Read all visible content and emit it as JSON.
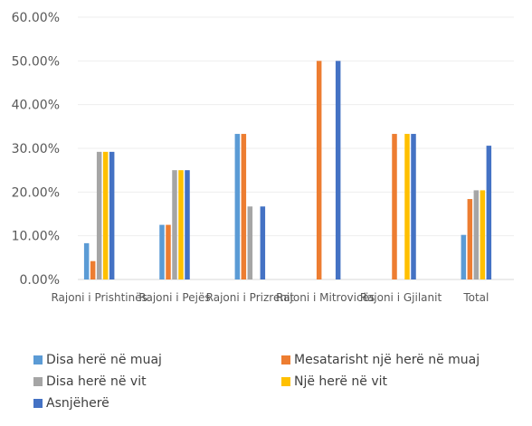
{
  "chart_data": {
    "type": "bar",
    "categories": [
      "Rajoni i Prishtinës",
      "Rajoni i Pejës",
      "Rajoni i Prizrenit",
      "Rajoni i Mitrovicës",
      "Rajoni i Gjilanit",
      "Total"
    ],
    "series": [
      {
        "name": "Disa herë në muaj",
        "color": "#5B9BD5",
        "values": [
          8.3,
          12.5,
          33.3,
          0,
          0,
          10.2
        ]
      },
      {
        "name": "Mesatarisht një herë në muaj",
        "color": "#ED7D31",
        "values": [
          4.2,
          12.5,
          33.3,
          50.0,
          33.3,
          18.4
        ]
      },
      {
        "name": "Disa herë në vit",
        "color": "#A5A5A5",
        "values": [
          29.2,
          25.0,
          16.7,
          0,
          0,
          20.4
        ]
      },
      {
        "name": "Një herë në vit",
        "color": "#FFC000",
        "values": [
          29.2,
          25.0,
          0,
          0,
          33.3,
          20.4
        ]
      },
      {
        "name": "Asnjëherë",
        "color": "#4472C4",
        "values": [
          29.2,
          25.0,
          16.7,
          50.0,
          33.3,
          30.6
        ]
      }
    ],
    "yticks": [
      "0.00%",
      "10.00%",
      "20.00%",
      "30.00%",
      "40.00%",
      "50.00%",
      "60.00%"
    ],
    "ylim": [
      0,
      60
    ],
    "grid": true,
    "legend_position": "bottom"
  }
}
